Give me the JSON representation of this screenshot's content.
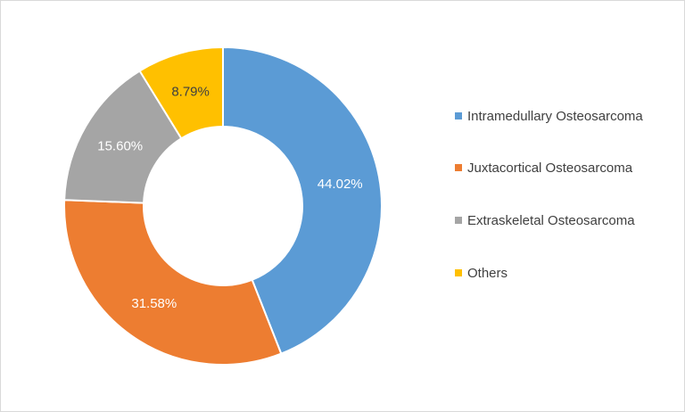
{
  "chart_data": {
    "type": "pie",
    "variant": "donut",
    "title": "",
    "categories": [
      "Intramedullary Osteosarcoma",
      "Juxtacortical Osteosarcoma",
      "Extraskeletal Osteosarcoma",
      "Others"
    ],
    "values": [
      44.02,
      31.58,
      15.6,
      8.79
    ],
    "data_labels": [
      "44.02%",
      "31.58%",
      "15.60%",
      "8.79%"
    ],
    "colors": [
      "#5b9bd5",
      "#ed7d31",
      "#a5a5a5",
      "#ffc000"
    ],
    "label_colors": [
      "#ffffff",
      "#ffffff",
      "#ffffff",
      "#404040"
    ],
    "legend": {
      "position": "right",
      "entries": [
        "Intramedullary Osteosarcoma",
        "Juxtacortical Osteosarcoma",
        "Extraskeletal Osteosarcoma",
        "Others"
      ]
    }
  }
}
